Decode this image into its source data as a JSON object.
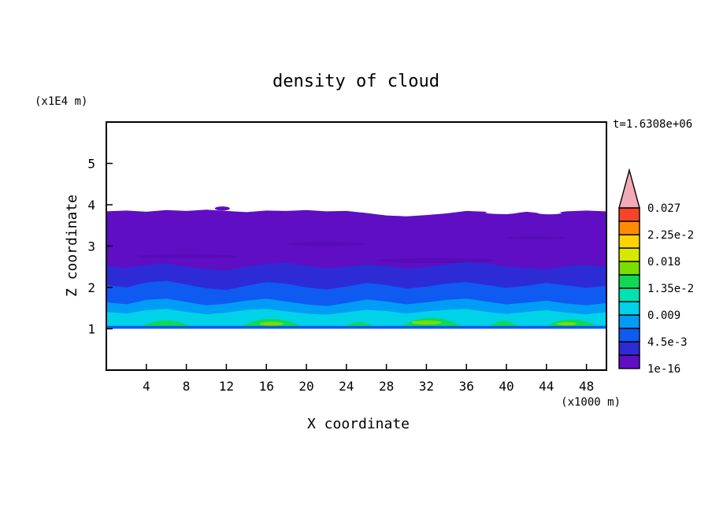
{
  "chart_data": {
    "type": "filled-contour",
    "title": "density of cloud",
    "xlabel": "X coordinate",
    "ylabel": "Z coordinate",
    "x_unit_label": "(x1000 m)",
    "y_unit_label": "(x1E4 m)",
    "time_label": "t=1.6308e+06",
    "xlim": [
      0,
      50
    ],
    "ylim": [
      0,
      6
    ],
    "xticks": [
      4,
      8,
      12,
      16,
      20,
      24,
      28,
      32,
      36,
      40,
      44,
      48
    ],
    "yticks": [
      1,
      2,
      3,
      4,
      5
    ],
    "levels": [
      1e-16,
      0.00225,
      0.0045,
      0.00675,
      0.009,
      0.01125,
      0.0135,
      0.01575,
      0.018,
      0.02025,
      0.0225,
      0.02475,
      0.027
    ],
    "colorbar_labels_top_to_bottom": [
      "0.027",
      "2.25e-2",
      "0.018",
      "1.35e-2",
      "0.009",
      "4.5e-3",
      "1e-16"
    ],
    "band_colors_bottom_to_top": [
      "#5f0ec4",
      "#2d2bd5",
      "#0f5af0",
      "#009cf5",
      "#00d2e8",
      "#00e3b0",
      "#0fd857",
      "#7ade00",
      "#d6e800",
      "#ffd400",
      "#ff8c00",
      "#f4452a"
    ],
    "overflow_color": "#f2a9b8",
    "grid": false,
    "legend_position": "right-colorbar",
    "field": {
      "x": [
        0,
        2,
        4,
        6,
        8,
        10,
        12,
        14,
        16,
        18,
        20,
        22,
        24,
        26,
        28,
        30,
        32,
        34,
        36,
        38,
        40,
        42,
        44,
        46,
        48,
        50
      ],
      "base": 1.0,
      "layers": [
        {
          "name": "band-1e-16",
          "color": "#5f0ec4",
          "top": [
            3.84,
            3.86,
            3.83,
            3.87,
            3.85,
            3.88,
            3.85,
            3.82,
            3.86,
            3.85,
            3.87,
            3.84,
            3.85,
            3.8,
            3.74,
            3.72,
            3.75,
            3.79,
            3.85,
            3.83,
            3.77,
            3.83,
            3.78,
            3.84,
            3.86,
            3.84
          ]
        },
        {
          "name": "band-2.25e-3",
          "color": "#2d2bd5",
          "top": [
            2.52,
            2.47,
            2.54,
            2.58,
            2.5,
            2.44,
            2.42,
            2.5,
            2.57,
            2.6,
            2.53,
            2.46,
            2.5,
            2.56,
            2.52,
            2.45,
            2.49,
            2.56,
            2.62,
            2.58,
            2.51,
            2.46,
            2.44,
            2.52,
            2.55,
            2.5
          ]
        },
        {
          "name": "band-4.5e-3",
          "color": "#0f5af0",
          "top": [
            2.06,
            2.0,
            2.12,
            2.16,
            2.07,
            1.98,
            1.94,
            2.04,
            2.13,
            2.09,
            2.0,
            1.95,
            2.02,
            2.11,
            2.06,
            1.97,
            2.02,
            2.09,
            2.13,
            2.06,
            1.99,
            2.04,
            2.11,
            2.05,
            1.99,
            2.04
          ]
        },
        {
          "name": "band-6.75e-3",
          "color": "#009cf5",
          "top": [
            1.64,
            1.59,
            1.7,
            1.73,
            1.65,
            1.57,
            1.61,
            1.68,
            1.73,
            1.66,
            1.59,
            1.55,
            1.62,
            1.71,
            1.66,
            1.59,
            1.64,
            1.7,
            1.73,
            1.66,
            1.59,
            1.63,
            1.68,
            1.61,
            1.57,
            1.62
          ]
        },
        {
          "name": "band-9e-3",
          "color": "#00d2e8",
          "top": [
            1.41,
            1.37,
            1.45,
            1.48,
            1.41,
            1.35,
            1.39,
            1.46,
            1.48,
            1.42,
            1.37,
            1.34,
            1.4,
            1.46,
            1.43,
            1.37,
            1.42,
            1.46,
            1.48,
            1.41,
            1.36,
            1.41,
            1.45,
            1.39,
            1.35,
            1.4
          ]
        }
      ],
      "green_patches": [
        {
          "x0": 3.0,
          "x1": 9.0,
          "peak": 1.2
        },
        {
          "x0": 13.0,
          "x1": 20.0,
          "peak": 1.24
        },
        {
          "x0": 23.5,
          "x1": 27.0,
          "peak": 1.16
        },
        {
          "x0": 29.0,
          "x1": 36.0,
          "peak": 1.26
        },
        {
          "x0": 38.0,
          "x1": 41.5,
          "peak": 1.19
        },
        {
          "x0": 43.5,
          "x1": 49.5,
          "peak": 1.23
        }
      ],
      "green_color": "#0fd857",
      "accents": [
        {
          "x": 16.5,
          "z": 1.12,
          "rx": 1.2,
          "rz": 0.05
        },
        {
          "x": 32.0,
          "z": 1.15,
          "rx": 1.5,
          "rz": 0.05
        },
        {
          "x": 46.0,
          "z": 1.12,
          "rx": 1.0,
          "rz": 0.04
        }
      ],
      "accent_color": "#7ade00",
      "wisps": [
        {
          "x": 8.0,
          "z": 2.75,
          "rx": 5.0,
          "rz": 0.05
        },
        {
          "x": 22.0,
          "z": 3.05,
          "rx": 4.0,
          "rz": 0.05
        },
        {
          "x": 33.0,
          "z": 2.65,
          "rx": 6.0,
          "rz": 0.06
        },
        {
          "x": 43.0,
          "z": 3.2,
          "rx": 3.0,
          "rz": 0.04
        }
      ],
      "wisp_color": "#5209ae",
      "islands": [
        {
          "x": 11.6,
          "z": 3.91,
          "rx": 0.75,
          "rz": 0.05
        }
      ],
      "island_color": "#5f0ec4",
      "white_slivers": [
        {
          "x": 27.0,
          "z": 3.83,
          "rx": 1.0,
          "rz": 0.03
        },
        {
          "x": 39.5,
          "z": 3.81,
          "rx": 1.6,
          "rz": 0.035
        },
        {
          "x": 44.3,
          "z": 3.8,
          "rx": 1.2,
          "rz": 0.03
        }
      ],
      "base_strip": {
        "z0": 1.0,
        "z1": 1.07,
        "color": "#0f5af0"
      }
    }
  }
}
